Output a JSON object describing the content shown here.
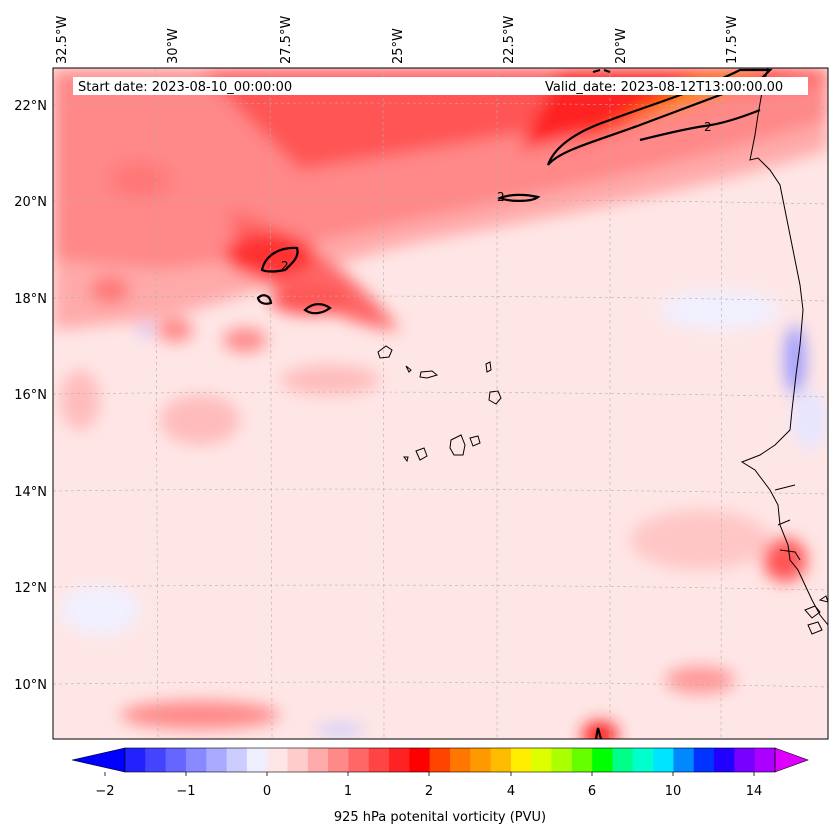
{
  "map": {
    "start_date_label": "Start date: 2023-08-10_00:00:00",
    "valid_date_label": "Valid_date: 2023-08-12T13:00:00.00",
    "lon_labels": [
      "32.5°W",
      "30°W",
      "27.5°W",
      "25°W",
      "22.5°W",
      "20°W",
      "17.5°W"
    ],
    "lat_labels": [
      "22°N",
      "20°N",
      "18°N",
      "16°N",
      "14°N",
      "12°N",
      "10°N"
    ],
    "contour_level_label": "2",
    "extent": {
      "lon_min": -33.0,
      "lon_max": -15.0,
      "lat_min": 8.9,
      "lat_max": 22.8
    },
    "colors": {
      "background_pv": "#ffe6e6",
      "coastline": "#000000",
      "contour": "#000000",
      "gridline": "#b0b0b0"
    }
  },
  "colorbar": {
    "label": "925 hPa potenital vorticity (PVU)",
    "tick_labels": [
      "−2",
      "−1",
      "0",
      "1",
      "2",
      "4",
      "6",
      "10",
      "14"
    ],
    "colors": [
      "#0000ff",
      "#2222ff",
      "#4444ff",
      "#6666ff",
      "#8888ff",
      "#aaaaff",
      "#ccccff",
      "#eeeeff",
      "#ffe6e6",
      "#ffcccc",
      "#ffaaaa",
      "#ff8888",
      "#ff6666",
      "#ff4444",
      "#ff2222",
      "#ff0000",
      "#ff4400",
      "#ff7700",
      "#ff9900",
      "#ffbb00",
      "#ffee00",
      "#ddff00",
      "#aaff00",
      "#66ff00",
      "#00ff00",
      "#00ff88",
      "#00ffcc",
      "#00e5ff",
      "#0088ff",
      "#0033ff",
      "#2200ff",
      "#7700ff",
      "#aa00ff",
      "#dd00ff"
    ],
    "under_color": "#0000ff",
    "over_color": "#dd00ff"
  }
}
